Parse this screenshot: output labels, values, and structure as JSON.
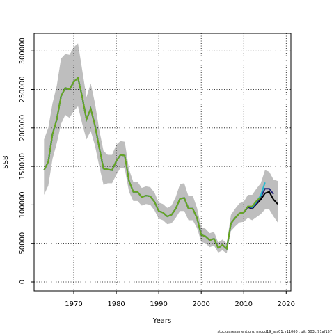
{
  "chart_data": {
    "type": "line",
    "x_label": "Years",
    "y_label": "SSB",
    "footnote": "stockassessment.org, nscod19_ass01, r11060 , git: 503cf91af157",
    "x": [
      1963,
      1964,
      1965,
      1966,
      1967,
      1968,
      1969,
      1970,
      1971,
      1972,
      1973,
      1974,
      1975,
      1976,
      1977,
      1978,
      1979,
      1980,
      1981,
      1982,
      1983,
      1984,
      1985,
      1986,
      1987,
      1988,
      1989,
      1990,
      1991,
      1992,
      1993,
      1994,
      1995,
      1996,
      1997,
      1998,
      1999,
      2000,
      2001,
      2002,
      2003,
      2004,
      2005,
      2006,
      2007,
      2008,
      2009,
      2010,
      2011,
      2012,
      2013,
      2014,
      2015,
      2016,
      2017,
      2018
    ],
    "band": {
      "color": "#bebebe",
      "upper": [
        185000,
        200000,
        232000,
        255000,
        290000,
        296000,
        295000,
        305000,
        310000,
        275000,
        240000,
        258000,
        232000,
        197000,
        170000,
        165000,
        165000,
        178000,
        183000,
        182000,
        146000,
        130000,
        130000,
        122000,
        124000,
        123000,
        116000,
        103000,
        101000,
        96000,
        99000,
        110000,
        127000,
        128000,
        111000,
        112000,
        96000,
        71000,
        69000,
        63000,
        65000,
        51000,
        55000,
        50000,
        87000,
        95000,
        102000,
        104000,
        113000,
        113000,
        121000,
        128000,
        145000,
        143000,
        133000,
        131000
      ],
      "lower": [
        113000,
        125000,
        160000,
        180000,
        205000,
        217000,
        213000,
        222000,
        228000,
        205000,
        185000,
        196000,
        177000,
        150000,
        126000,
        128000,
        128000,
        139000,
        148000,
        147000,
        117000,
        105000,
        105000,
        99000,
        101000,
        100000,
        93000,
        82000,
        80000,
        75000,
        76000,
        83000,
        92000,
        92000,
        80000,
        80000,
        70000,
        52000,
        50000,
        45000,
        47000,
        38000,
        41000,
        37000,
        66000,
        72000,
        77000,
        78000,
        83000,
        80000,
        84000,
        88000,
        94000,
        94000,
        85000,
        77000
      ]
    },
    "series": [
      {
        "color": "#000000",
        "values": [
          145000,
          156000,
          192000,
          211000,
          241000,
          252000,
          250000,
          260000,
          265000,
          240000,
          211000,
          225000,
          203000,
          174000,
          147000,
          146000,
          145000,
          157000,
          165000,
          164000,
          131000,
          117000,
          117000,
          110000,
          112000,
          111000,
          104000,
          92000,
          90000,
          85000,
          87000,
          95000,
          108000,
          109000,
          95000,
          95000,
          83000,
          61000,
          59000,
          54000,
          56000,
          44000,
          48000,
          43000,
          76000,
          83000,
          89000,
          90000,
          97000,
          95000,
          101000,
          107000,
          115000,
          117000,
          107000,
          101000
        ]
      },
      {
        "color": "#26287a",
        "values": [
          145000,
          156000,
          192000,
          211000,
          241000,
          252000,
          250000,
          260000,
          265000,
          240000,
          211000,
          225000,
          203000,
          174000,
          147000,
          146000,
          145000,
          157000,
          165000,
          164000,
          131000,
          117000,
          117000,
          110000,
          112000,
          111000,
          104000,
          92000,
          90000,
          85000,
          87000,
          95000,
          108000,
          109000,
          95000,
          95000,
          83000,
          61000,
          59000,
          54000,
          56000,
          44000,
          48000,
          43000,
          76000,
          83000,
          89000,
          90000,
          97000,
          96000,
          102000,
          110000,
          121000,
          121000,
          114000,
          null
        ]
      },
      {
        "color": "#1fb8d0",
        "values": [
          145000,
          156000,
          192000,
          211000,
          241000,
          252000,
          250000,
          260000,
          265000,
          240000,
          211000,
          225000,
          203000,
          174000,
          147000,
          146000,
          145000,
          157000,
          165000,
          164000,
          131000,
          117000,
          117000,
          110000,
          112000,
          111000,
          104000,
          92000,
          90000,
          85000,
          87000,
          95000,
          108000,
          109000,
          95000,
          95000,
          83000,
          61000,
          59000,
          54000,
          56000,
          44000,
          48000,
          43000,
          76000,
          83000,
          89000,
          90000,
          98000,
          97000,
          104000,
          112000,
          129000,
          null,
          null,
          null
        ]
      },
      {
        "color": "#6aa61e",
        "values": [
          145000,
          156000,
          192000,
          211000,
          241000,
          252000,
          250000,
          260000,
          265000,
          240000,
          211000,
          225000,
          203000,
          174000,
          147000,
          146000,
          145000,
          157000,
          165000,
          164000,
          131000,
          117000,
          117000,
          110000,
          112000,
          111000,
          104000,
          92000,
          90000,
          85000,
          87000,
          95000,
          108000,
          109000,
          95000,
          95000,
          83000,
          61000,
          59000,
          54000,
          56000,
          44000,
          48000,
          43000,
          76000,
          83000,
          89000,
          90000,
          98000,
          98000,
          105000,
          110000,
          null,
          null,
          null,
          null
        ]
      }
    ],
    "xlim": [
      1960.66,
      2021.1
    ],
    "ylim": [
      -11750,
      322800
    ],
    "xticks": [
      1970,
      1980,
      1990,
      2000,
      2010,
      2020
    ],
    "yticks": [
      0,
      50000,
      100000,
      150000,
      200000,
      250000,
      300000
    ],
    "grid": true
  }
}
